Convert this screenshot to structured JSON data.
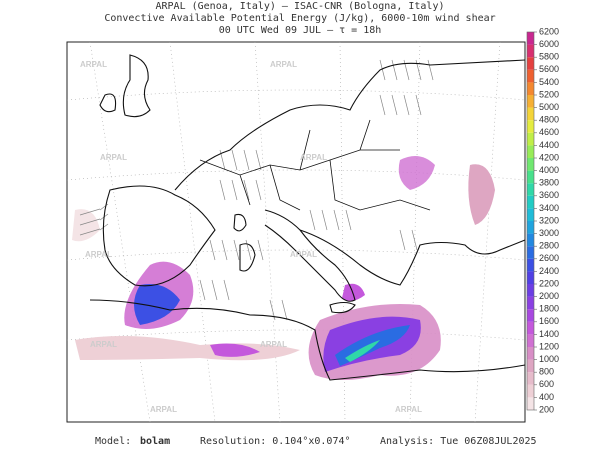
{
  "header": {
    "line1": "ARPAL (Genoa, Italy)  –  ISAC-CNR (Bologna, Italy)",
    "line2": "Convective Available Potential Energy (J/kg), 6000-10m wind shear",
    "line3": "00 UTC Wed 09 JUL  –  τ = 18h"
  },
  "watermark": "ARPAL",
  "colorbar": {
    "ticks": [
      200,
      400,
      600,
      800,
      1000,
      1200,
      1400,
      1600,
      1800,
      2000,
      2200,
      2400,
      2600,
      2800,
      3000,
      3200,
      3400,
      3600,
      3800,
      4000,
      4200,
      4400,
      4600,
      4800,
      5000,
      5200,
      5400,
      5600,
      5800,
      6000,
      6200
    ],
    "colors": [
      "#f4e4e6",
      "#eed0d6",
      "#e6bccb",
      "#dea6c2",
      "#d88ec6",
      "#d070d2",
      "#c458dc",
      "#a848e0",
      "#8a40e2",
      "#6c3ee4",
      "#5040e4",
      "#3c50e4",
      "#2a6ce2",
      "#2288e0",
      "#20a4de",
      "#20bcd8",
      "#22ccc4",
      "#30d8a8",
      "#48e08c",
      "#70e870",
      "#98ec58",
      "#c0ee48",
      "#e4ec40",
      "#f4d438",
      "#f6b034",
      "#f48830",
      "#ee6030",
      "#e44040",
      "#d83070",
      "#c82890"
    ]
  },
  "footer": {
    "model_label": "Model:",
    "model": "bolam",
    "resolution": "Resolution: 0.104°x0.074°",
    "analysis": "Analysis: Tue 06Z08JUL2025"
  }
}
